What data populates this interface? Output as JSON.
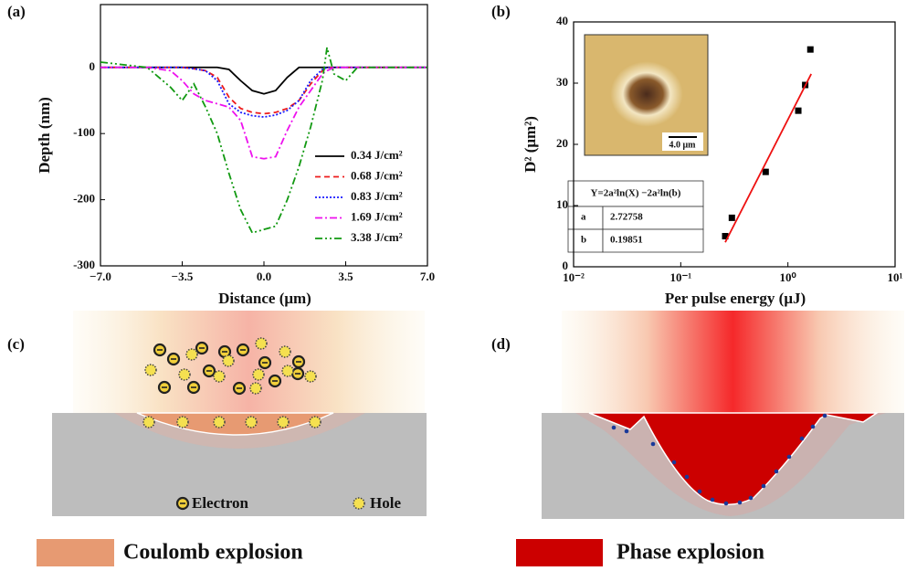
{
  "chart_data": [
    {
      "type": "line",
      "label": "(a)",
      "xlabel": "Distance (μm)",
      "ylabel": "Depth (nm)",
      "x": [
        -7,
        -5,
        -4,
        -3.5,
        -3,
        -2.5,
        -2,
        -1.5,
        -1,
        -0.5,
        0,
        0.5,
        1,
        1.5,
        2,
        2.5,
        2.7,
        3,
        3.5,
        4,
        5,
        7
      ],
      "series": [
        {
          "name": "0.34 J/cm²",
          "color": "#000000",
          "linestyle": "solid",
          "values": [
            0,
            0,
            0,
            0,
            0,
            0,
            0,
            -3,
            -20,
            -35,
            -40,
            -35,
            -15,
            0,
            0,
            0,
            0,
            0,
            0,
            0,
            0,
            0
          ]
        },
        {
          "name": "0.68 J/cm²",
          "color": "#ee1c1c",
          "linestyle": "dashed",
          "values": [
            0,
            0,
            0,
            0,
            -2,
            -5,
            -15,
            -45,
            -62,
            -68,
            -70,
            -68,
            -62,
            -50,
            -25,
            -5,
            0,
            0,
            0,
            0,
            0,
            0
          ]
        },
        {
          "name": "0.83 J/cm²",
          "color": "#1a1aff",
          "linestyle": "dotted",
          "values": [
            0,
            0,
            0,
            0,
            -2,
            -5,
            -20,
            -55,
            -68,
            -73,
            -75,
            -72,
            -65,
            -50,
            -20,
            -3,
            0,
            0,
            0,
            0,
            0,
            0
          ]
        },
        {
          "name": "1.69 J/cm²",
          "color": "#ee11ee",
          "linestyle": "dashdot",
          "values": [
            0,
            0,
            -5,
            -20,
            -40,
            -50,
            -55,
            -60,
            -80,
            -135,
            -138,
            -135,
            -95,
            -60,
            -35,
            -10,
            -5,
            0,
            0,
            0,
            0,
            0
          ]
        },
        {
          "name": "3.38 J/cm²",
          "color": "#119911",
          "linestyle": "dashdotdot",
          "values": [
            8,
            0,
            -30,
            -50,
            -25,
            -60,
            -100,
            -160,
            -215,
            -250,
            -245,
            -240,
            -200,
            -150,
            -90,
            -20,
            30,
            -10,
            -20,
            0,
            0,
            0
          ]
        }
      ],
      "xlim": [
        -7,
        7
      ],
      "xticks": [
        {
          "value": -7,
          "label": "−7.0"
        },
        {
          "value": -3.5,
          "label": "−3.5"
        },
        {
          "value": 0,
          "label": "0.0"
        },
        {
          "value": 3.5,
          "label": "3.5"
        },
        {
          "value": 7,
          "label": "7.0"
        }
      ],
      "ylim": [
        -300,
        95
      ],
      "yticks": [
        -300,
        -200,
        -100,
        0
      ],
      "legend": "lower right"
    },
    {
      "type": "scatter",
      "label": "(b)",
      "xlabel": "Per pulse energy (μJ)",
      "ylabel": "D² (μm²)",
      "xscale": "log",
      "series": [
        {
          "type": "scatter",
          "color": "#000000",
          "x": [
            0.26,
            0.3,
            0.62,
            1.25,
            1.45,
            1.62
          ],
          "values": [
            5,
            8,
            15.5,
            25.5,
            29.7,
            35.5
          ]
        },
        {
          "type": "line",
          "color": "#ee1111",
          "x": [
            0.26,
            1.65
          ],
          "values": [
            4,
            31.5
          ]
        }
      ],
      "xlim": [
        0.01,
        10
      ],
      "xticks": [
        {
          "value": 0.01,
          "label": "10⁻²"
        },
        {
          "value": 0.1,
          "label": "10⁻¹"
        },
        {
          "value": 1,
          "label": "10⁰"
        },
        {
          "value": 10,
          "label": "10¹"
        }
      ],
      "ylim": [
        0,
        40
      ],
      "yticks": [
        0,
        10,
        20,
        30,
        40
      ],
      "inset_scale_label": "4.0 μm",
      "fit_table": {
        "header": "Y=2a²ln(X) −2a²ln(b)",
        "rows": [
          [
            "a",
            2.72758
          ],
          [
            "b",
            0.19851
          ]
        ]
      }
    }
  ],
  "diagrams": [
    {
      "label": "(c)",
      "legend": [
        "Electron",
        "Hole"
      ],
      "caption": "Coulomb explosion"
    },
    {
      "label": "(d)",
      "caption": "Phase explosion"
    }
  ]
}
